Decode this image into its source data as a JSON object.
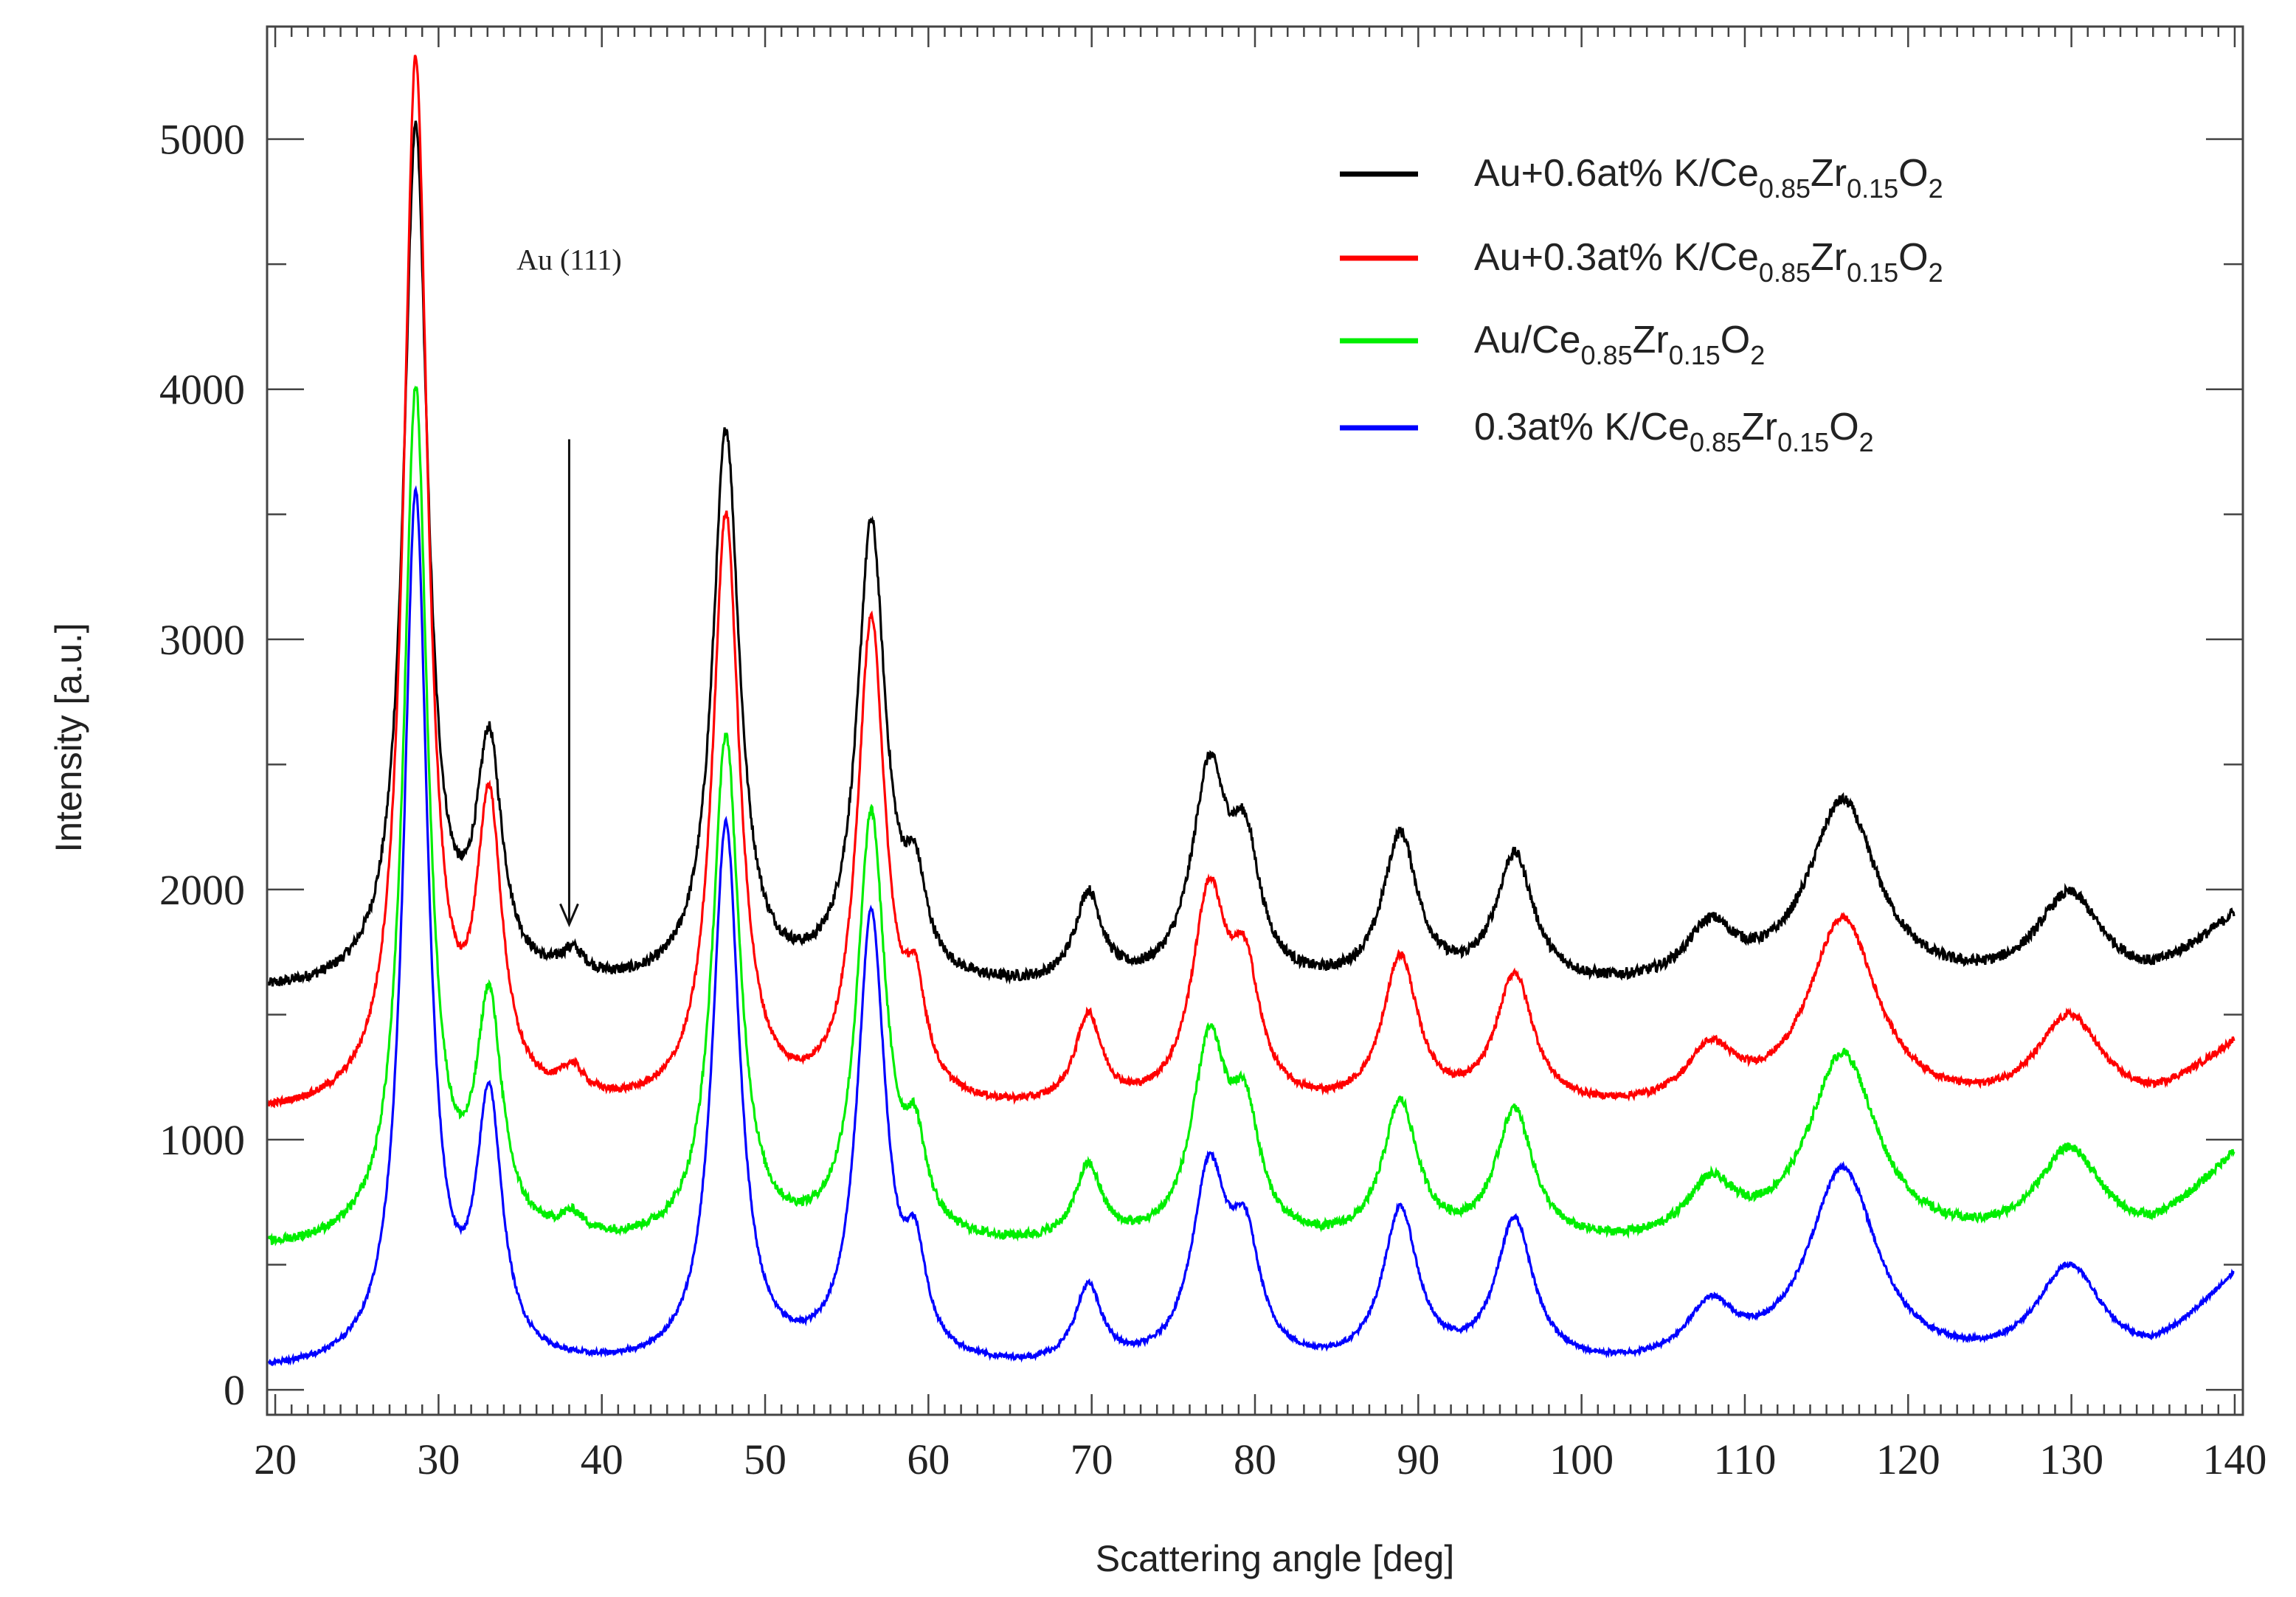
{
  "chart_data": {
    "type": "line",
    "title": "",
    "xlabel": "Scattering angle [deg]",
    "ylabel": "Intensity [a.u.]",
    "xlim": [
      19.5,
      140.5
    ],
    "ylim": [
      -100,
      5450
    ],
    "x_ticks": [
      20,
      30,
      40,
      50,
      60,
      70,
      80,
      90,
      100,
      110,
      120,
      130,
      140
    ],
    "x_tick_labels": [
      "20",
      "30",
      "40",
      "50",
      "60",
      "70",
      "80",
      "90",
      "100",
      "110",
      "120",
      "130",
      "140"
    ],
    "y_ticks": [
      0,
      1000,
      2000,
      3000,
      4000,
      5000
    ],
    "y_tick_labels": [
      "0",
      "1000",
      "2000",
      "3000",
      "4000",
      "5000"
    ],
    "legend_position": "top-right",
    "peaks": [
      {
        "x": 28.6,
        "w": 0.9
      },
      {
        "x": 33.1,
        "w": 0.95
      },
      {
        "x": 38.2,
        "w": 0.9
      },
      {
        "x": 47.6,
        "w": 1.0
      },
      {
        "x": 56.5,
        "w": 1.05
      },
      {
        "x": 59.2,
        "w": 0.8
      },
      {
        "x": 69.8,
        "w": 1.0
      },
      {
        "x": 77.2,
        "w": 1.3
      },
      {
        "x": 79.4,
        "w": 1.1
      },
      {
        "x": 88.9,
        "w": 1.3
      },
      {
        "x": 95.9,
        "w": 1.4
      },
      {
        "x": 107.9,
        "w": 1.8
      },
      {
        "x": 116.0,
        "w": 2.6
      },
      {
        "x": 129.9,
        "w": 2.5
      }
    ],
    "series": [
      {
        "name": "Au+0.6at% K/Ce0.85Zr0.15O2",
        "legend_prefix": "Au+0.6at% K/Ce",
        "legend_sub1": "0.85",
        "legend_mid": "Zr",
        "legend_sub2": "0.15",
        "legend_tail": "O",
        "legend_sub3": "2",
        "color": "#000000",
        "baseline": 1580,
        "tail_rise": 300,
        "noise": 22,
        "amps": [
          3420,
          920,
          100,
          2220,
          1830,
          330,
          360,
          830,
          480,
          600,
          520,
          220,
          750,
          380
        ]
      },
      {
        "name": "Au+0.3at% K/Ce0.85Zr0.15O2",
        "legend_prefix": "Au+0.3at% K/Ce",
        "legend_sub1": "0.85",
        "legend_mid": "Zr",
        "legend_sub2": "0.15",
        "legend_tail": "O",
        "legend_sub3": "2",
        "color": "#ff0000",
        "baseline": 1090,
        "tail_rise": 280,
        "noise": 14,
        "amps": [
          4180,
          1150,
          110,
          2370,
          1930,
          360,
          360,
          830,
          470,
          600,
          530,
          220,
          770,
          380
        ]
      },
      {
        "name": "Au/Ce0.85Zr0.15O2",
        "legend_prefix": "Au/Ce",
        "legend_sub1": "0.85",
        "legend_mid": "Zr",
        "legend_sub2": "0.15",
        "legend_tail": "O",
        "legend_sub3": "2",
        "color": "#00ee00",
        "baseline": 550,
        "tail_rise": 380,
        "noise": 18,
        "amps": [
          3410,
          920,
          80,
          2030,
          1700,
          330,
          300,
          780,
          450,
          560,
          530,
          220,
          770,
          390
        ]
      },
      {
        "name": "0.3at% K/Ce0.85Zr0.15O2",
        "legend_prefix": "0.3at% K/Ce",
        "legend_sub1": "0.85",
        "legend_mid": "Zr",
        "legend_sub2": "0.15",
        "legend_tail": "O",
        "legend_sub3": "2",
        "color": "#0000ff",
        "baseline": 60,
        "tail_rise": 380,
        "noise": 10,
        "amps": [
          3480,
          1020,
          0,
          2170,
          1790,
          360,
          310,
          760,
          440,
          620,
          580,
          220,
          800,
          410
        ]
      }
    ],
    "annotations": [
      {
        "text": "Au (111)",
        "x": 38.0,
        "arrow_from_y": 3800,
        "arrow_to_y": 1860
      }
    ]
  }
}
